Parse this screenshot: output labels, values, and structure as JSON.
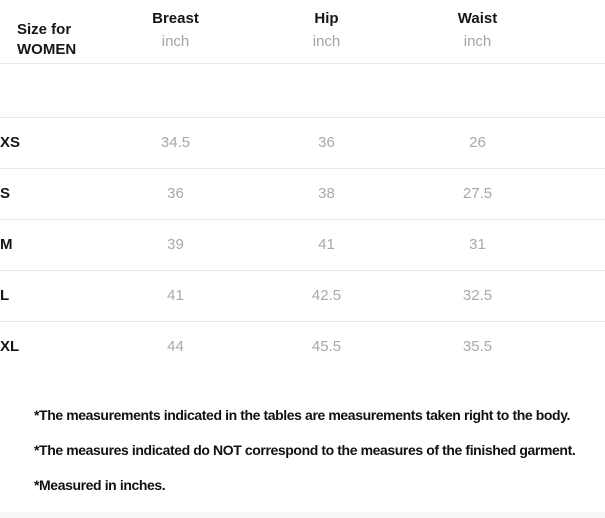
{
  "table": {
    "size_column_header": "Size for WOMEN",
    "columns": [
      {
        "label": "Breast",
        "unit": "inch"
      },
      {
        "label": "Hip",
        "unit": "inch"
      },
      {
        "label": "Waist",
        "unit": "inch"
      }
    ],
    "rows": [
      {
        "size": "XS",
        "values": [
          "34.5",
          "36",
          "26"
        ]
      },
      {
        "size": "S",
        "values": [
          "36",
          "38",
          "27.5"
        ]
      },
      {
        "size": "M",
        "values": [
          "39",
          "41",
          "31"
        ]
      },
      {
        "size": "L",
        "values": [
          "41",
          "42.5",
          "32.5"
        ]
      },
      {
        "size": "XL",
        "values": [
          "44",
          "45.5",
          "35.5"
        ]
      }
    ]
  },
  "footnotes": [
    "*The measurements indicated in the tables are measurements taken right to the body.",
    "*The measures indicated do NOT correspond to the measures of the finished garment.",
    "*Measured in inches."
  ],
  "colors": {
    "heading_text": "#161616",
    "muted_value_text": "#a8a8a8",
    "divider": "#e9e9e9",
    "bottom_strip": "#f7f7f8"
  }
}
